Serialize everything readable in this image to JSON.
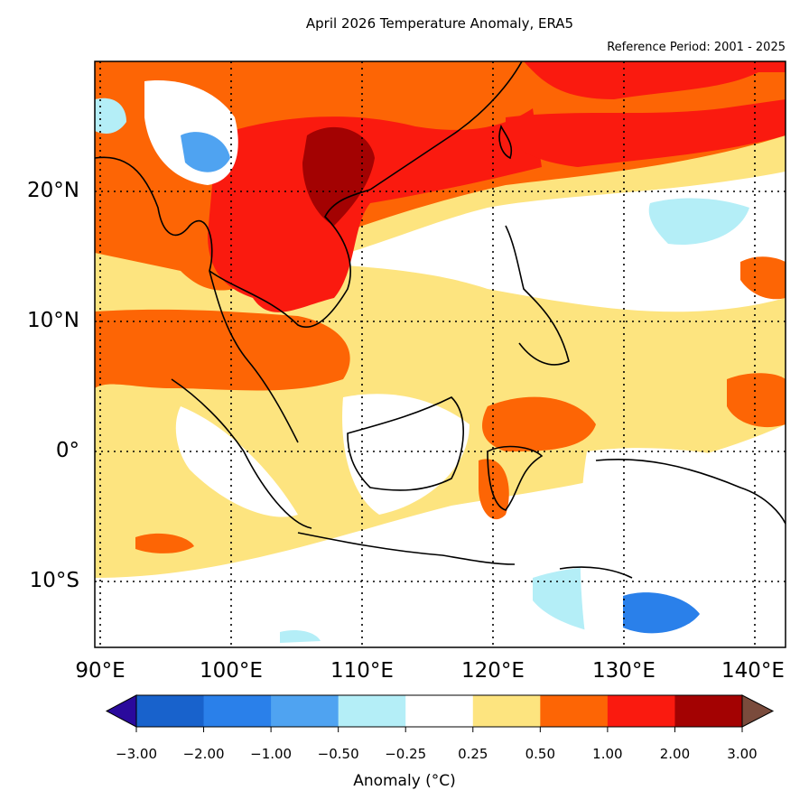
{
  "title": "April 2026 Temperature Anomaly, ERA5",
  "reference_period": "Reference Period: 2001 - 2025",
  "map": {
    "lon_range": [
      90,
      143
    ],
    "lat_range": [
      -15,
      30
    ],
    "lat_ticks": [
      {
        "value": 20,
        "label": "20°N"
      },
      {
        "value": 10,
        "label": "10°N"
      },
      {
        "value": 0,
        "label": "0°"
      },
      {
        "value": -10,
        "label": "10°S"
      }
    ],
    "lon_ticks": [
      {
        "value": 90,
        "label": "90°E"
      },
      {
        "value": 100,
        "label": "100°E"
      },
      {
        "value": 110,
        "label": "110°E"
      },
      {
        "value": 120,
        "label": "120°E"
      },
      {
        "value": 130,
        "label": "130°E"
      },
      {
        "value": 140,
        "label": "140°E"
      }
    ],
    "gridlines": true
  },
  "colorbar": {
    "label": "Anomaly (°C)",
    "ticks": [
      "−3.00",
      "−2.00",
      "−1.00",
      "−0.50",
      "−0.25",
      "0.25",
      "0.50",
      "1.00",
      "2.00",
      "3.00"
    ],
    "under_color": "#2a0a9c",
    "over_color": "#7a4b3c",
    "colors": [
      "#1862cc",
      "#2a80ea",
      "#4fa3f1",
      "#b4eef7",
      "#ffffff",
      "#fde47f",
      "#fd6505",
      "#fa1a0f",
      "#a30202"
    ]
  }
}
